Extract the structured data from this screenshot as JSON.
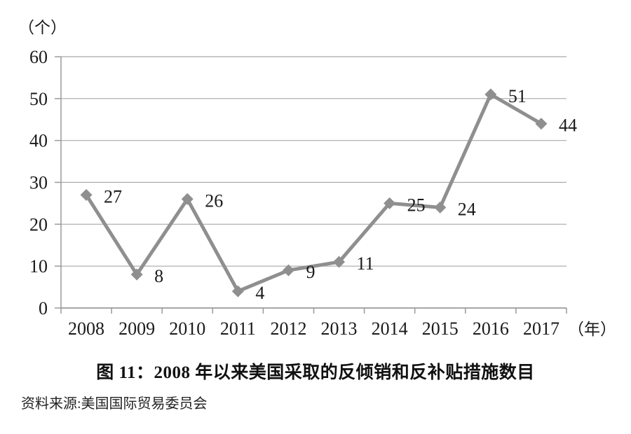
{
  "chart_data": {
    "type": "line",
    "title": "图 11：2008 年以来美国采取的反倾销和反补贴措施数目",
    "source": "资料来源:美国国际贸易委员会",
    "y_axis_unit": "（个）",
    "x_axis_unit": "（年）",
    "categories": [
      "2008",
      "2009",
      "2010",
      "2011",
      "2012",
      "2013",
      "2014",
      "2015",
      "2016",
      "2017"
    ],
    "values": [
      27,
      8,
      26,
      4,
      9,
      11,
      25,
      24,
      51,
      44
    ],
    "ylim": [
      0,
      60
    ],
    "y_ticks": [
      0,
      10,
      20,
      30,
      40,
      50,
      60
    ],
    "grid": true,
    "legend": "none",
    "xlabel": "",
    "ylabel": "",
    "colors": {
      "series": "#8f8f8f",
      "gridline": "#a8a8a8",
      "axis": "#9a9a9a",
      "text": "#1a1a1a"
    }
  }
}
